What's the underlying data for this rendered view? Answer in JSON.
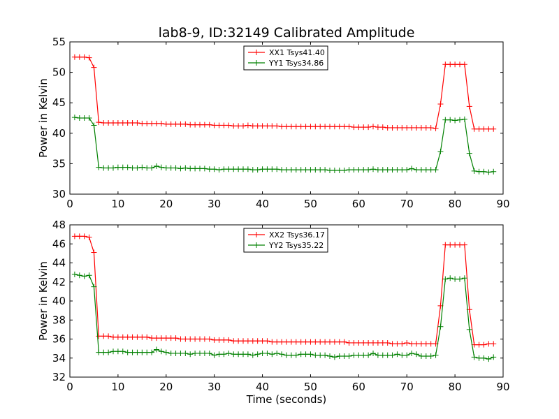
{
  "chart_data": [
    {
      "type": "line",
      "title": "lab8-9, ID:32149 Calibrated Amplitude",
      "xlabel": "",
      "ylabel": "Power in Kelvin",
      "xlim": [
        0,
        90
      ],
      "ylim": [
        30,
        55
      ],
      "xticks": [
        0,
        10,
        20,
        30,
        40,
        50,
        60,
        70,
        80,
        90
      ],
      "yticks": [
        30,
        35,
        40,
        45,
        50,
        55
      ],
      "grid": false,
      "legend_position": "top-center",
      "x": [
        1,
        2,
        3,
        4,
        5,
        6,
        7,
        8,
        9,
        10,
        11,
        12,
        13,
        14,
        15,
        16,
        17,
        18,
        19,
        20,
        21,
        22,
        23,
        24,
        25,
        26,
        27,
        28,
        29,
        30,
        31,
        32,
        33,
        34,
        35,
        36,
        37,
        38,
        39,
        40,
        41,
        42,
        43,
        44,
        45,
        46,
        47,
        48,
        49,
        50,
        51,
        52,
        53,
        54,
        55,
        56,
        57,
        58,
        59,
        60,
        61,
        62,
        63,
        64,
        65,
        66,
        67,
        68,
        69,
        70,
        71,
        72,
        73,
        74,
        75,
        76,
        77,
        78,
        79,
        80,
        81,
        82,
        83,
        84,
        85,
        86,
        87,
        88
      ],
      "series": [
        {
          "name": "XX1 Tsys41.40",
          "color": "#ff0000",
          "values": [
            52.5,
            52.5,
            52.5,
            52.4,
            50.8,
            41.8,
            41.7,
            41.7,
            41.7,
            41.7,
            41.7,
            41.7,
            41.7,
            41.7,
            41.6,
            41.6,
            41.6,
            41.6,
            41.6,
            41.5,
            41.5,
            41.5,
            41.5,
            41.5,
            41.4,
            41.4,
            41.4,
            41.4,
            41.4,
            41.3,
            41.3,
            41.3,
            41.3,
            41.2,
            41.2,
            41.2,
            41.3,
            41.2,
            41.2,
            41.2,
            41.2,
            41.2,
            41.2,
            41.1,
            41.1,
            41.1,
            41.1,
            41.1,
            41.1,
            41.1,
            41.1,
            41.1,
            41.1,
            41.1,
            41.1,
            41.1,
            41.1,
            41.1,
            41.0,
            41.0,
            41.0,
            41.0,
            41.1,
            41.0,
            41.0,
            40.9,
            40.9,
            40.9,
            40.9,
            40.9,
            40.9,
            40.9,
            40.9,
            40.9,
            40.9,
            40.8,
            44.8,
            51.3,
            51.3,
            51.3,
            51.3,
            51.3,
            44.4,
            40.7,
            40.7,
            40.7,
            40.7,
            40.7
          ]
        },
        {
          "name": "YY1 Tsys34.86",
          "color": "#008000",
          "values": [
            42.6,
            42.5,
            42.5,
            42.5,
            41.3,
            34.4,
            34.3,
            34.3,
            34.3,
            34.4,
            34.4,
            34.4,
            34.3,
            34.3,
            34.4,
            34.3,
            34.3,
            34.6,
            34.4,
            34.3,
            34.3,
            34.3,
            34.2,
            34.3,
            34.2,
            34.2,
            34.2,
            34.2,
            34.1,
            34.1,
            34.0,
            34.1,
            34.1,
            34.1,
            34.1,
            34.1,
            34.1,
            34.0,
            34.0,
            34.1,
            34.1,
            34.1,
            34.1,
            34.0,
            34.0,
            34.0,
            34.0,
            34.0,
            34.0,
            34.0,
            34.0,
            34.0,
            34.0,
            33.9,
            33.9,
            33.9,
            33.9,
            34.0,
            34.0,
            34.0,
            34.0,
            34.0,
            34.1,
            34.0,
            34.0,
            34.0,
            34.0,
            34.0,
            34.0,
            34.0,
            34.2,
            34.0,
            34.0,
            34.0,
            34.0,
            34.0,
            37.0,
            42.2,
            42.2,
            42.1,
            42.2,
            42.3,
            36.7,
            33.8,
            33.7,
            33.7,
            33.6,
            33.7
          ]
        }
      ]
    },
    {
      "type": "line",
      "title": "",
      "xlabel": "Time (seconds)",
      "ylabel": "Power in Kelvin",
      "xlim": [
        0,
        90
      ],
      "ylim": [
        32,
        48
      ],
      "xticks": [
        0,
        10,
        20,
        30,
        40,
        50,
        60,
        70,
        80,
        90
      ],
      "yticks": [
        32,
        34,
        36,
        38,
        40,
        42,
        44,
        46,
        48
      ],
      "grid": false,
      "legend_position": "top-center",
      "x": [
        1,
        2,
        3,
        4,
        5,
        6,
        7,
        8,
        9,
        10,
        11,
        12,
        13,
        14,
        15,
        16,
        17,
        18,
        19,
        20,
        21,
        22,
        23,
        24,
        25,
        26,
        27,
        28,
        29,
        30,
        31,
        32,
        33,
        34,
        35,
        36,
        37,
        38,
        39,
        40,
        41,
        42,
        43,
        44,
        45,
        46,
        47,
        48,
        49,
        50,
        51,
        52,
        53,
        54,
        55,
        56,
        57,
        58,
        59,
        60,
        61,
        62,
        63,
        64,
        65,
        66,
        67,
        68,
        69,
        70,
        71,
        72,
        73,
        74,
        75,
        76,
        77,
        78,
        79,
        80,
        81,
        82,
        83,
        84,
        85,
        86,
        87,
        88
      ],
      "series": [
        {
          "name": "XX2 Tsys36.17",
          "color": "#ff0000",
          "values": [
            46.8,
            46.8,
            46.8,
            46.7,
            45.1,
            36.3,
            36.3,
            36.3,
            36.2,
            36.2,
            36.2,
            36.2,
            36.2,
            36.2,
            36.2,
            36.2,
            36.1,
            36.1,
            36.1,
            36.1,
            36.1,
            36.1,
            36.0,
            36.0,
            36.0,
            36.0,
            36.0,
            36.0,
            36.0,
            35.9,
            35.9,
            35.9,
            35.9,
            35.8,
            35.8,
            35.8,
            35.8,
            35.8,
            35.8,
            35.8,
            35.8,
            35.7,
            35.7,
            35.7,
            35.7,
            35.7,
            35.7,
            35.7,
            35.7,
            35.7,
            35.7,
            35.7,
            35.7,
            35.7,
            35.7,
            35.7,
            35.7,
            35.6,
            35.6,
            35.6,
            35.6,
            35.6,
            35.6,
            35.6,
            35.6,
            35.6,
            35.5,
            35.5,
            35.5,
            35.6,
            35.5,
            35.5,
            35.5,
            35.5,
            35.5,
            35.5,
            39.5,
            45.9,
            45.9,
            45.9,
            45.9,
            45.9,
            39.1,
            35.4,
            35.4,
            35.4,
            35.5,
            35.5
          ]
        },
        {
          "name": "YY2 Tsys35.22",
          "color": "#008000",
          "values": [
            42.8,
            42.7,
            42.6,
            42.7,
            41.5,
            34.6,
            34.6,
            34.6,
            34.7,
            34.7,
            34.7,
            34.6,
            34.6,
            34.6,
            34.6,
            34.6,
            34.6,
            34.9,
            34.7,
            34.6,
            34.5,
            34.5,
            34.5,
            34.5,
            34.4,
            34.5,
            34.5,
            34.5,
            34.5,
            34.3,
            34.4,
            34.4,
            34.5,
            34.4,
            34.4,
            34.4,
            34.4,
            34.3,
            34.4,
            34.5,
            34.5,
            34.4,
            34.5,
            34.4,
            34.3,
            34.3,
            34.3,
            34.4,
            34.4,
            34.4,
            34.3,
            34.3,
            34.3,
            34.2,
            34.1,
            34.2,
            34.2,
            34.2,
            34.3,
            34.3,
            34.3,
            34.3,
            34.5,
            34.3,
            34.3,
            34.3,
            34.3,
            34.4,
            34.3,
            34.3,
            34.5,
            34.4,
            34.2,
            34.2,
            34.2,
            34.3,
            37.3,
            42.3,
            42.4,
            42.3,
            42.3,
            42.4,
            37.0,
            34.1,
            34.0,
            34.0,
            33.9,
            34.1
          ]
        }
      ]
    }
  ]
}
